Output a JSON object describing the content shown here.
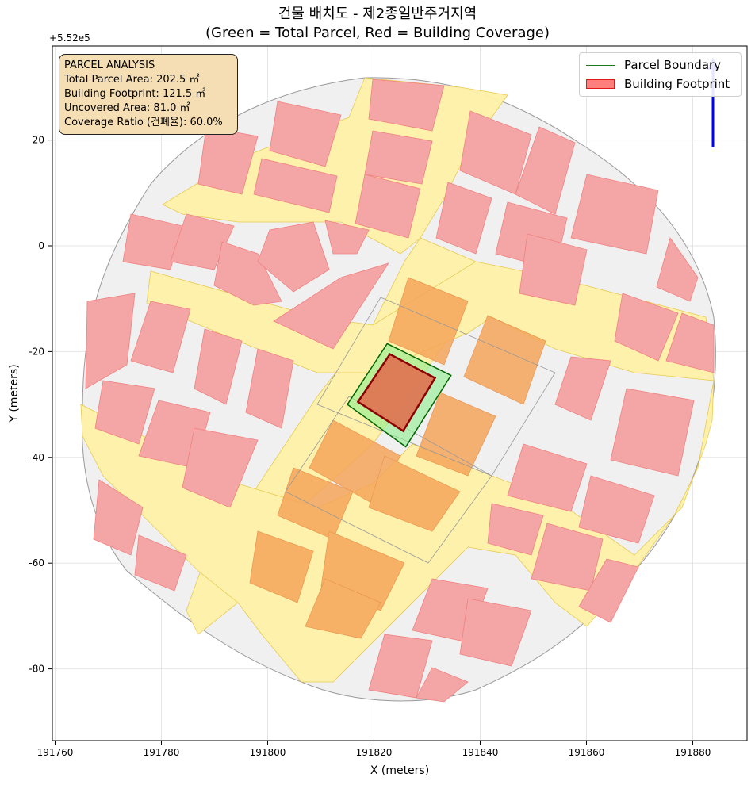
{
  "title": {
    "line1": "건물 배치도 - 제2종일반주거지역",
    "line2": "(Green = Total Parcel, Red = Building Coverage)"
  },
  "axes": {
    "xlabel": "X (meters)",
    "ylabel": "Y (meters)",
    "y_offset_label": "+5.52e5",
    "xticks": [
      191760,
      191780,
      191800,
      191820,
      191840,
      191860,
      191880
    ],
    "yticks": [
      20,
      0,
      -20,
      -40,
      -60,
      -80
    ],
    "xlim": [
      191760,
      191890
    ],
    "ylim": [
      -93,
      37
    ],
    "grid": true
  },
  "legend": {
    "position": "top-right",
    "items": [
      {
        "label": "Parcel Boundary",
        "color": "#1a7a1a"
      },
      {
        "label": "Building Footprint",
        "color": "#ff0000"
      }
    ]
  },
  "info_box": {
    "heading": "PARCEL ANALYSIS",
    "lines": [
      "Total Parcel Area: 202.5 ㎡",
      "Building Footprint: 121.5 ㎡",
      "Uncovered Area: 81.0 ㎡",
      "Coverage Ratio (건폐율): 60.0%"
    ]
  },
  "colors": {
    "parcel_fill": "#90ee90",
    "parcel_edge": "#006400",
    "building_fill": "#e07050",
    "building_edge": "#8b0000",
    "road": "#fff2a8",
    "block": "#f0f0f0",
    "neighbor_building": "#f4a6a6"
  },
  "map": {
    "subject_parcel": [
      [
        191822.5,
        -18.5
      ],
      [
        191834.5,
        -24.5
      ],
      [
        191826,
        -38
      ],
      [
        191815,
        -30
      ]
    ],
    "subject_building": [
      [
        191823,
        -20.5
      ],
      [
        191831.5,
        -25
      ],
      [
        191825.5,
        -35
      ],
      [
        191817,
        -29.5
      ]
    ]
  },
  "north_arrow_color": "#0000ff"
}
